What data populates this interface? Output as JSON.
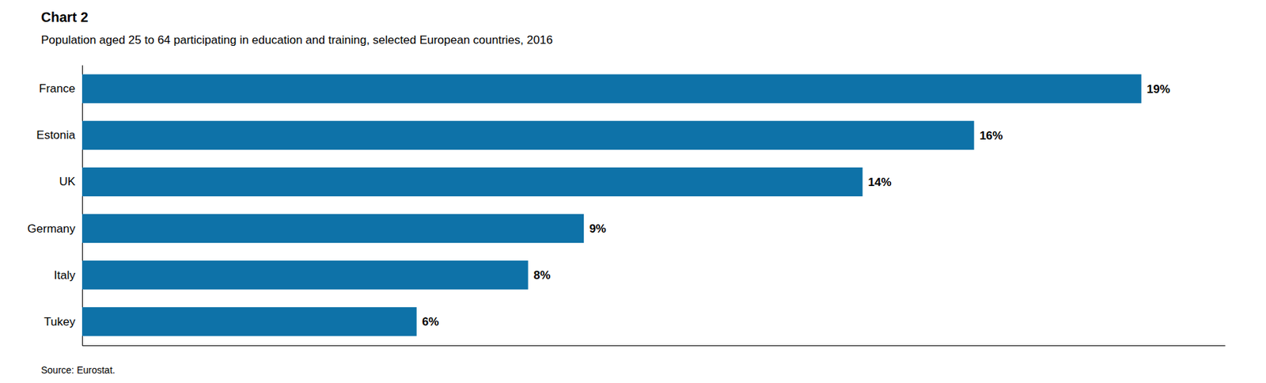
{
  "chart_data": {
    "type": "bar",
    "orientation": "horizontal",
    "title": "Chart 2",
    "subtitle": "Population aged 25 to 64 participating in education and training, selected European countries, 2016",
    "source": "Source: Eurostat.",
    "categories": [
      "France",
      "Estonia",
      "UK",
      "Germany",
      "Italy",
      "Tukey"
    ],
    "values": [
      19,
      16,
      14,
      9,
      8,
      6
    ],
    "value_labels": [
      "19%",
      "16%",
      "14%",
      "9%",
      "8%",
      "6%"
    ],
    "data_labels": true,
    "color": "#0e72a8",
    "xlim": [
      0,
      20.5
    ],
    "grid": false,
    "tick_labels": "y"
  }
}
